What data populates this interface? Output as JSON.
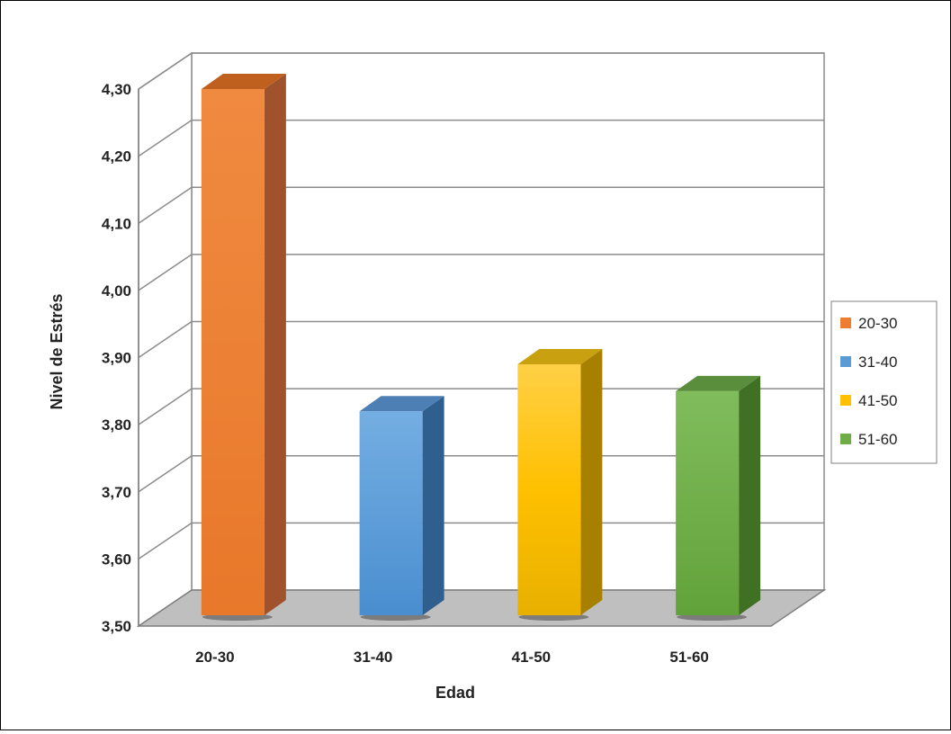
{
  "chart_data": {
    "type": "bar",
    "title": "",
    "xlabel": "Edad",
    "ylabel": "Nivel de Estrés",
    "categories": [
      "20-30",
      "31-40",
      "41-50",
      "51-60"
    ],
    "values": [
      4.3,
      3.82,
      3.89,
      3.85
    ],
    "ylim": [
      3.5,
      4.3
    ],
    "yticks": [
      "3,50",
      "3,60",
      "3,70",
      "3,80",
      "3,90",
      "4,00",
      "4,10",
      "4,20",
      "4,30"
    ],
    "grid": true,
    "legend": {
      "position": "right",
      "entries": [
        "20-30",
        "31-40",
        "41-50",
        "51-60"
      ]
    },
    "colors": [
      "#ED7D31",
      "#5B9BD5",
      "#FFC000",
      "#70AD47"
    ]
  }
}
